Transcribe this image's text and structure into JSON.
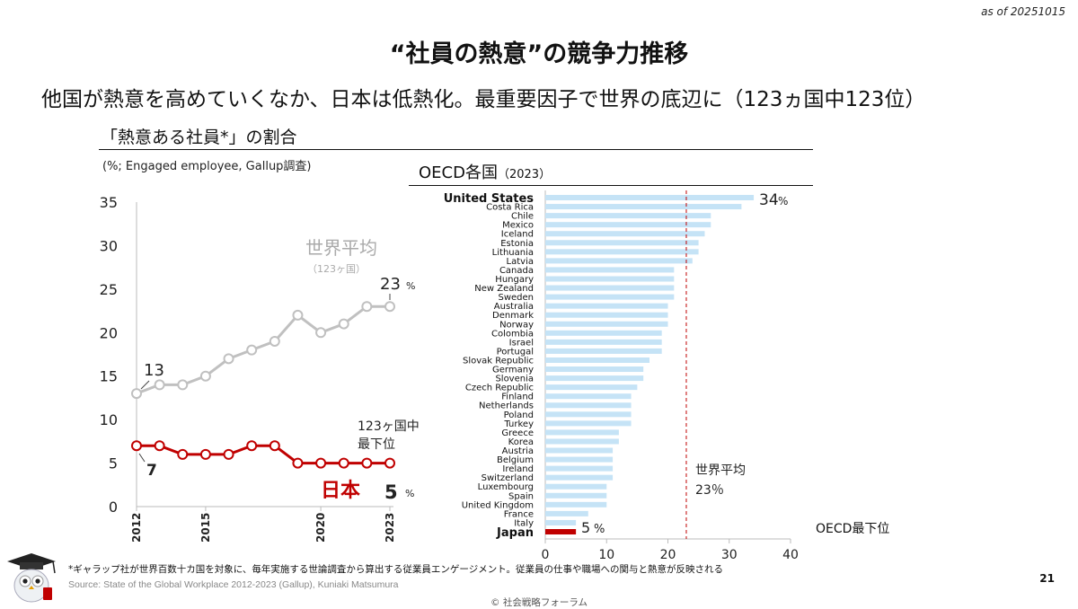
{
  "header": {
    "as_of": "as of 20251015",
    "title": "“社員の熱意”の競争力推移",
    "subtitle": "他国が熱意を高めていくなか、日本は低熱化。最重要因子で世界の底辺に（123ヵ国中123位）"
  },
  "left_panel": {
    "heading": "「熱意ある社員*」の割合",
    "unit": "(%; Engaged employee, Gallup調査)"
  },
  "right_panel": {
    "heading": "OECD各国",
    "heading_year": "（2023）"
  },
  "footer": {
    "footnote": "*ギャラップ社が世界百数十カ国を対象に、毎年実施する世論調査から算出する従業員エンゲージメント。従業員の仕事や職場への関与と熱意が反映される",
    "source": "Source: State of the Global Workplace 2012-2023 (Gallup), Kuniaki Matsumura",
    "copyright": "© 社会戦略フォーラム",
    "page_number": "21"
  },
  "colors": {
    "world_line": "#c0c0c0",
    "japan_line": "#c00000",
    "oecd_bar": "#c5e3f6",
    "japan_bar": "#c00000",
    "average_line": "#c00000"
  },
  "chart_data": [
    {
      "type": "line",
      "title": "「熱意ある社員*」の割合",
      "ylabel": "(%; Engaged employee, Gallup調査)",
      "ylim": [
        0,
        35
      ],
      "yticks": [
        0,
        5,
        10,
        15,
        20,
        25,
        30,
        35
      ],
      "x": [
        2012,
        2013,
        2014,
        2015,
        2016,
        2017,
        2018,
        2019,
        2020,
        2021,
        2022,
        2023
      ],
      "xtick_labels": [
        "2012",
        "2015",
        "2020",
        "2023"
      ],
      "series": [
        {
          "name": "世界平均",
          "note": "（123ヶ国）",
          "values": [
            13,
            14,
            14,
            15,
            17,
            18,
            19,
            22,
            20,
            21,
            23,
            23
          ]
        },
        {
          "name": "日本",
          "values": [
            7,
            7,
            6,
            6,
            6,
            7,
            7,
            5,
            5,
            5,
            5,
            5
          ]
        }
      ],
      "annotations": {
        "world_start": "13",
        "world_end": "23",
        "world_end_unit": "%",
        "japan_start": "7",
        "japan_end": "5",
        "japan_end_unit": "%",
        "rank_line1": "123ヶ国中",
        "rank_line2": "最下位"
      }
    },
    {
      "type": "bar",
      "orientation": "horizontal",
      "title": "OECD各国（2023）",
      "xlim": [
        0,
        40
      ],
      "xticks": [
        0,
        10,
        20,
        30,
        40
      ],
      "categories": [
        "United States",
        "Costa Rica",
        "Chile",
        "Mexico",
        "Iceland",
        "Estonia",
        "Lithuania",
        "Latvia",
        "Canada",
        "Hungary",
        "New Zealand",
        "Sweden",
        "Australia",
        "Denmark",
        "Norway",
        "Colombia",
        "Israel",
        "Portugal",
        "Slovak Republic",
        "Germany",
        "Slovenia",
        "Czech Republic",
        "Finland",
        "Netherlands",
        "Poland",
        "Turkey",
        "Greece",
        "Korea",
        "Austria",
        "Belgium",
        "Ireland",
        "Switzerland",
        "Luxembourg",
        "Spain",
        "United Kingdom",
        "France",
        "Italy",
        "Japan"
      ],
      "values": [
        34,
        32,
        27,
        27,
        26,
        25,
        25,
        24,
        21,
        21,
        21,
        21,
        20,
        20,
        20,
        19,
        19,
        19,
        17,
        16,
        16,
        15,
        14,
        14,
        14,
        14,
        12,
        12,
        11,
        11,
        11,
        11,
        10,
        10,
        10,
        7,
        5,
        5
      ],
      "highlight": [
        "United States",
        "Japan"
      ],
      "reference_line": {
        "value": 23,
        "label": "世界平均",
        "value_label": "23％"
      },
      "annotations": {
        "top_value": "34",
        "top_unit": "%",
        "japan_value": "5",
        "japan_unit": "%",
        "bottom_label": "OECD最下位"
      }
    }
  ]
}
